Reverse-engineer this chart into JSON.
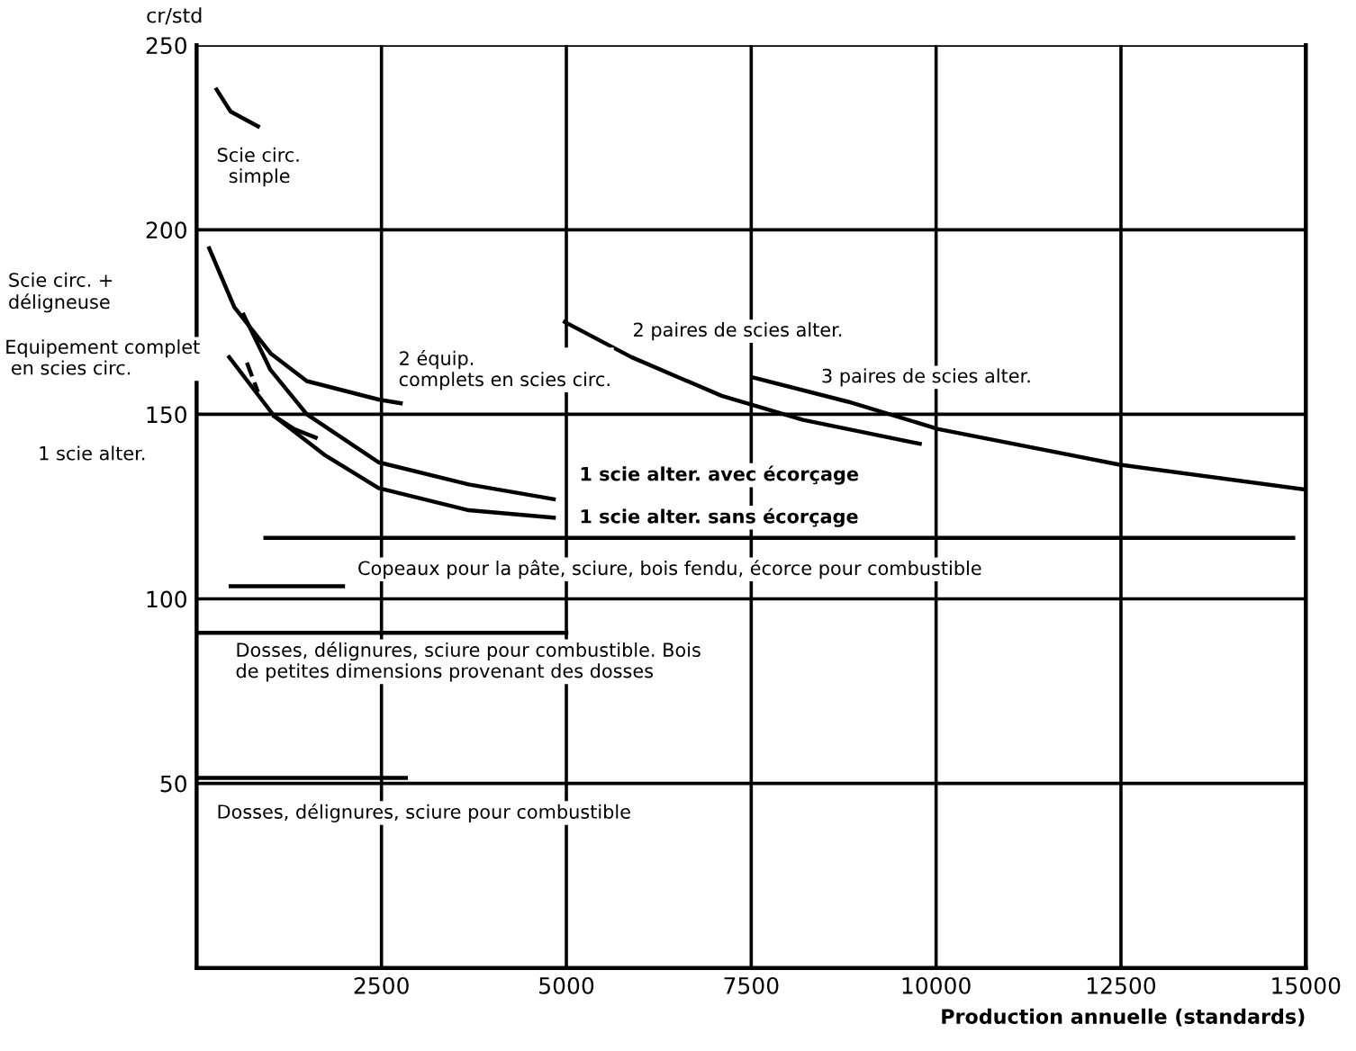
{
  "chart_data": {
    "type": "line",
    "ylabel": "cr/std",
    "xlabel": "Production annuelle (standards)",
    "xlim": [
      0,
      15000
    ],
    "ylim": [
      0,
      250
    ],
    "xticks": [
      2500,
      5000,
      7500,
      10000,
      12500,
      15000
    ],
    "yticks": [
      50,
      100,
      150,
      200,
      250
    ],
    "grid": true,
    "marker": "none",
    "line_style": "solid",
    "series": [
      {
        "color": "#000000",
        "x": [
          270,
          460,
          830
        ],
        "values": [
          238,
          232,
          228
        ]
      },
      {
        "color": "#000000",
        "x": [
          170,
          510,
          1000,
          1490,
          2460,
          2760
        ],
        "values": [
          195,
          179,
          166.5,
          159,
          154,
          153
        ]
      },
      {
        "color": "#000000",
        "x": [
          635,
          1000,
          1490,
          2460,
          3680,
          4830
        ],
        "values": [
          177,
          162,
          150,
          137,
          131,
          127
        ]
      },
      {
        "color": "#000000",
        "x": [
          440,
          1050,
          1730,
          2460,
          3680,
          4830
        ],
        "values": [
          165.5,
          149.5,
          139,
          130,
          124,
          122
        ]
      },
      {
        "color": "#000000",
        "x": [
          1050,
          1320,
          1610
        ],
        "values": [
          149.5,
          146,
          143.7
        ]
      },
      {
        "color": "#000000",
        "line_style": "dashed",
        "x": [
          680,
          830
        ],
        "values": [
          164,
          156
        ]
      },
      {
        "color": "#000000",
        "x": [
          4980,
          5880,
          7100,
          8200,
          9780
        ],
        "values": [
          175,
          165.5,
          155,
          148.5,
          142
        ]
      },
      {
        "color": "#000000",
        "x": [
          7520,
          8810,
          10030,
          12470,
          15000
        ],
        "values": [
          160,
          153.4,
          146,
          136.4,
          129.6
        ]
      },
      {
        "color": "#000000",
        "x": [
          930,
          14830
        ],
        "values": [
          116.5,
          116.5
        ]
      },
      {
        "color": "#000000",
        "x": [
          460,
          1980
        ],
        "values": [
          103.4,
          103.4
        ]
      },
      {
        "color": "#000000",
        "x": [
          0,
          5000
        ],
        "values": [
          90.8,
          90.8
        ]
      },
      {
        "color": "#000000",
        "x": [
          0,
          2830
        ],
        "values": [
          51.5,
          51.5
        ]
      }
    ],
    "annotations": [
      "Scie circ.\n  simple",
      "Scie circ. +\ndéligneuse",
      "Equipement complet\n en scies circ.",
      "1 scie alter.",
      "2 équip.\ncomplets en scies circ.",
      "2 paires de scies alter.",
      "3 paires de scies alter.",
      "1 scie alter. avec écorçage",
      "1 scie alter. sans écorçage",
      "Copeaux pour la pâte, sciure, bois fendu, écorce pour combustible",
      "Dosses, délignures, sciure pour combustible. Bois\nde petites dimensions provenant des dosses",
      "Dosses, délignures, sciure pour combustible"
    ]
  }
}
